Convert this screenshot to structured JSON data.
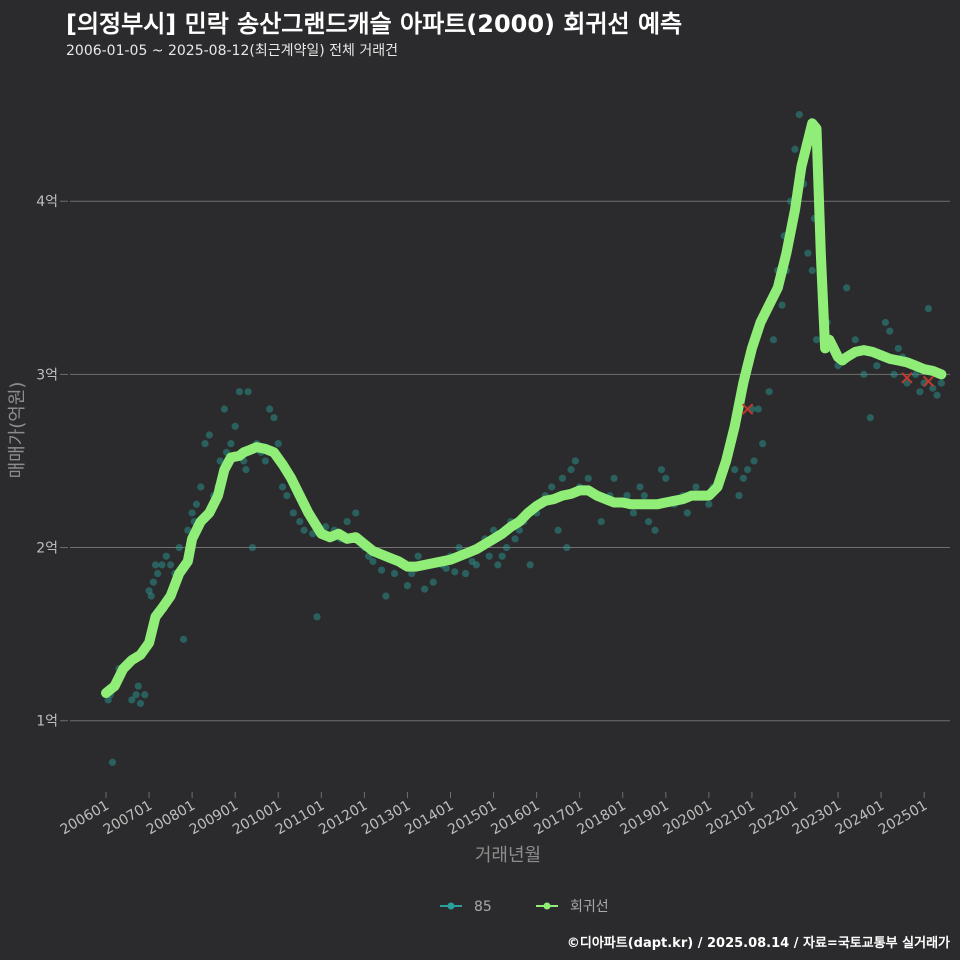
{
  "header": {
    "title": "[의정부시] 민락 송산그랜드캐슬 아파트(2000) 회귀선 예측",
    "subtitle": "2006-01-05 ~ 2025-08-12(최근계약일) 전체 거래건"
  },
  "footer": {
    "credit": "©디아파트(dapt.kr) / 2025.08.14 / 자료=국토교통부 실거래가"
  },
  "colors": {
    "background": "#2b2b2d",
    "grid": "#6e6e6e",
    "trend": "#90ee78",
    "points": "#2aa198",
    "highlight": "#c0392b"
  },
  "chart_data": {
    "type": "scatter",
    "title": "[의정부시] 민락 송산그랜드캐슬 아파트(2000) 회귀선 예측",
    "xlabel": "거래년월",
    "ylabel": "매매가(억원)",
    "xlim": [
      2006.0,
      2025.6
    ],
    "ylim": [
      0.6,
      4.7
    ],
    "x_ticks": [
      {
        "x": 2006.0,
        "label": "200601"
      },
      {
        "x": 2007.0,
        "label": "200701"
      },
      {
        "x": 2008.0,
        "label": "200801"
      },
      {
        "x": 2009.0,
        "label": "200901"
      },
      {
        "x": 2010.0,
        "label": "201001"
      },
      {
        "x": 2011.0,
        "label": "201101"
      },
      {
        "x": 2012.0,
        "label": "201201"
      },
      {
        "x": 2013.0,
        "label": "201301"
      },
      {
        "x": 2014.0,
        "label": "201401"
      },
      {
        "x": 2015.0,
        "label": "201501"
      },
      {
        "x": 2016.0,
        "label": "201601"
      },
      {
        "x": 2017.0,
        "label": "201701"
      },
      {
        "x": 2018.0,
        "label": "201801"
      },
      {
        "x": 2019.0,
        "label": "201901"
      },
      {
        "x": 2020.0,
        "label": "202001"
      },
      {
        "x": 2021.0,
        "label": "202101"
      },
      {
        "x": 2022.0,
        "label": "202201"
      },
      {
        "x": 2023.0,
        "label": "202301"
      },
      {
        "x": 2024.0,
        "label": "202401"
      },
      {
        "x": 2025.0,
        "label": "202501"
      }
    ],
    "y_ticks": [
      {
        "y": 1,
        "label": "1억"
      },
      {
        "y": 2,
        "label": "2억"
      },
      {
        "y": 3,
        "label": "3억"
      },
      {
        "y": 4,
        "label": "4억"
      }
    ],
    "legend": [
      {
        "name": "85",
        "kind": "point"
      },
      {
        "name": "회귀선",
        "kind": "line"
      }
    ],
    "trend": {
      "name": "회귀선",
      "x": [
        2006.0,
        2006.2,
        2006.4,
        2006.6,
        2006.8,
        2007.0,
        2007.15,
        2007.3,
        2007.5,
        2007.7,
        2007.9,
        2008.0,
        2008.2,
        2008.4,
        2008.6,
        2008.75,
        2008.9,
        2009.1,
        2009.2,
        2009.3,
        2009.5,
        2009.7,
        2009.9,
        2010.1,
        2010.3,
        2010.5,
        2010.7,
        2010.9,
        2011.0,
        2011.2,
        2011.4,
        2011.6,
        2011.8,
        2012.0,
        2012.2,
        2012.4,
        2012.6,
        2012.8,
        2013.0,
        2013.2,
        2013.4,
        2013.6,
        2013.8,
        2014.0,
        2014.2,
        2014.4,
        2014.6,
        2014.8,
        2015.0,
        2015.2,
        2015.4,
        2015.6,
        2015.8,
        2016.0,
        2016.2,
        2016.4,
        2016.6,
        2016.8,
        2017.0,
        2017.2,
        2017.4,
        2017.6,
        2017.8,
        2018.0,
        2018.2,
        2018.4,
        2018.6,
        2018.8,
        2019.0,
        2019.2,
        2019.4,
        2019.6,
        2019.8,
        2020.0,
        2020.2,
        2020.4,
        2020.6,
        2020.8,
        2021.0,
        2021.2,
        2021.4,
        2021.6,
        2021.8,
        2022.0,
        2022.15,
        2022.3,
        2022.4,
        2022.5,
        2022.6,
        2022.7,
        2022.8,
        2022.9,
        2023.0,
        2023.1,
        2023.2,
        2023.4,
        2023.6,
        2023.8,
        2024.0,
        2024.2,
        2024.4,
        2024.6,
        2024.8,
        2025.0,
        2025.2,
        2025.4
      ],
      "y": [
        1.16,
        1.2,
        1.3,
        1.35,
        1.38,
        1.45,
        1.6,
        1.65,
        1.72,
        1.85,
        1.92,
        2.05,
        2.15,
        2.2,
        2.3,
        2.45,
        2.52,
        2.53,
        2.55,
        2.56,
        2.58,
        2.57,
        2.55,
        2.48,
        2.4,
        2.3,
        2.2,
        2.12,
        2.08,
        2.06,
        2.08,
        2.05,
        2.06,
        2.02,
        1.98,
        1.96,
        1.94,
        1.92,
        1.89,
        1.89,
        1.9,
        1.91,
        1.92,
        1.93,
        1.95,
        1.97,
        1.99,
        2.02,
        2.05,
        2.08,
        2.12,
        2.15,
        2.2,
        2.24,
        2.27,
        2.28,
        2.3,
        2.31,
        2.33,
        2.33,
        2.3,
        2.28,
        2.26,
        2.26,
        2.25,
        2.25,
        2.25,
        2.25,
        2.26,
        2.27,
        2.28,
        2.3,
        2.3,
        2.3,
        2.35,
        2.5,
        2.7,
        2.95,
        3.15,
        3.3,
        3.4,
        3.5,
        3.7,
        3.95,
        4.2,
        4.35,
        4.45,
        4.42,
        3.7,
        3.15,
        3.2,
        3.15,
        3.1,
        3.08,
        3.1,
        3.13,
        3.14,
        3.13,
        3.11,
        3.09,
        3.08,
        3.07,
        3.05,
        3.03,
        3.02,
        3.0
      ]
    },
    "series": [
      {
        "name": "85",
        "x": [
          2006.05,
          2006.1,
          2006.15,
          2006.3,
          2006.6,
          2006.7,
          2006.75,
          2006.8,
          2006.9,
          2007.0,
          2007.05,
          2007.1,
          2007.15,
          2007.2,
          2007.3,
          2007.35,
          2007.4,
          2007.5,
          2007.6,
          2007.7,
          2007.8,
          2007.9,
          2008.0,
          2008.05,
          2008.1,
          2008.2,
          2008.3,
          2008.4,
          2008.5,
          2008.6,
          2008.65,
          2008.75,
          2008.8,
          2008.9,
          2009.0,
          2009.1,
          2009.2,
          2009.25,
          2009.3,
          2009.4,
          2009.5,
          2009.6,
          2009.7,
          2009.8,
          2009.9,
          2010.0,
          2010.1,
          2010.2,
          2010.35,
          2010.5,
          2010.6,
          2010.8,
          2010.9,
          2011.1,
          2011.2,
          2011.3,
          2011.45,
          2011.6,
          2011.8,
          2012.0,
          2012.1,
          2012.2,
          2012.4,
          2012.5,
          2012.7,
          2012.9,
          2013.0,
          2013.1,
          2013.25,
          2013.4,
          2013.6,
          2013.8,
          2013.9,
          2014.0,
          2014.1,
          2014.2,
          2014.35,
          2014.5,
          2014.6,
          2014.8,
          2014.9,
          2015.0,
          2015.1,
          2015.2,
          2015.3,
          2015.4,
          2015.5,
          2015.6,
          2015.7,
          2015.85,
          2016.0,
          2016.1,
          2016.2,
          2016.35,
          2016.5,
          2016.6,
          2016.7,
          2016.8,
          2016.9,
          2017.0,
          2017.2,
          2017.4,
          2017.5,
          2017.7,
          2017.8,
          2018.0,
          2018.1,
          2018.25,
          2018.4,
          2018.5,
          2018.6,
          2018.75,
          2018.9,
          2019.0,
          2019.2,
          2019.4,
          2019.5,
          2019.7,
          2019.8,
          2020.0,
          2020.1,
          2020.3,
          2020.4,
          2020.5,
          2020.6,
          2020.7,
          2020.8,
          2020.9,
          2021.0,
          2021.05,
          2021.15,
          2021.25,
          2021.4,
          2021.5,
          2021.6,
          2021.7,
          2021.75,
          2021.8,
          2021.9,
          2022.0,
          2022.1,
          2022.2,
          2022.3,
          2022.4,
          2022.45,
          2022.5,
          2022.6,
          2022.75,
          2022.9,
          2023.0,
          2023.2,
          2023.4,
          2023.6,
          2023.75,
          2023.9,
          2024.0,
          2024.1,
          2024.2,
          2024.3,
          2024.4,
          2024.5,
          2024.6,
          2024.7,
          2024.8,
          2024.9,
          2025.0,
          2025.1,
          2025.2,
          2025.3,
          2025.4
        ],
        "y": [
          1.12,
          1.15,
          0.76,
          1.3,
          1.12,
          1.15,
          1.2,
          1.1,
          1.15,
          1.75,
          1.72,
          1.8,
          1.9,
          1.85,
          1.9,
          1.65,
          1.95,
          1.9,
          1.85,
          2.0,
          1.47,
          2.1,
          2.2,
          2.15,
          2.25,
          2.35,
          2.6,
          2.65,
          2.3,
          2.35,
          2.5,
          2.8,
          2.55,
          2.6,
          2.7,
          2.9,
          2.5,
          2.45,
          2.9,
          2.0,
          2.6,
          2.55,
          2.5,
          2.8,
          2.75,
          2.6,
          2.35,
          2.3,
          2.2,
          2.15,
          2.1,
          2.08,
          1.6,
          2.12,
          2.05,
          2.1,
          2.05,
          2.15,
          2.2,
          2.0,
          1.95,
          1.92,
          1.87,
          1.72,
          1.85,
          1.9,
          1.78,
          1.85,
          1.95,
          1.76,
          1.8,
          1.9,
          1.88,
          1.95,
          1.86,
          2.0,
          1.85,
          1.92,
          1.9,
          2.05,
          1.95,
          2.1,
          1.9,
          1.95,
          2.0,
          2.15,
          2.05,
          2.1,
          2.15,
          1.9,
          2.2,
          2.25,
          2.3,
          2.35,
          2.1,
          2.4,
          2.0,
          2.45,
          2.5,
          2.35,
          2.4,
          2.3,
          2.15,
          2.3,
          2.4,
          2.25,
          2.3,
          2.2,
          2.35,
          2.3,
          2.15,
          2.1,
          2.45,
          2.4,
          2.25,
          2.3,
          2.2,
          2.35,
          2.3,
          2.25,
          2.35,
          2.4,
          2.5,
          2.6,
          2.45,
          2.3,
          2.4,
          2.45,
          2.8,
          2.5,
          2.8,
          2.6,
          2.9,
          3.2,
          3.6,
          3.4,
          3.8,
          3.6,
          4.0,
          4.3,
          4.5,
          4.1,
          3.7,
          3.6,
          3.9,
          3.2,
          3.8,
          3.3,
          3.15,
          3.05,
          3.5,
          3.2,
          3.0,
          2.75,
          3.05,
          3.1,
          3.3,
          3.25,
          3.0,
          3.15,
          3.1,
          2.95,
          3.05,
          3.0,
          2.9,
          2.95,
          3.38,
          2.92,
          2.88,
          2.95
        ]
      }
    ],
    "highlights": [
      {
        "x": 2020.9,
        "y": 2.8
      },
      {
        "x": 2024.6,
        "y": 2.98
      },
      {
        "x": 2025.1,
        "y": 2.96
      }
    ]
  }
}
